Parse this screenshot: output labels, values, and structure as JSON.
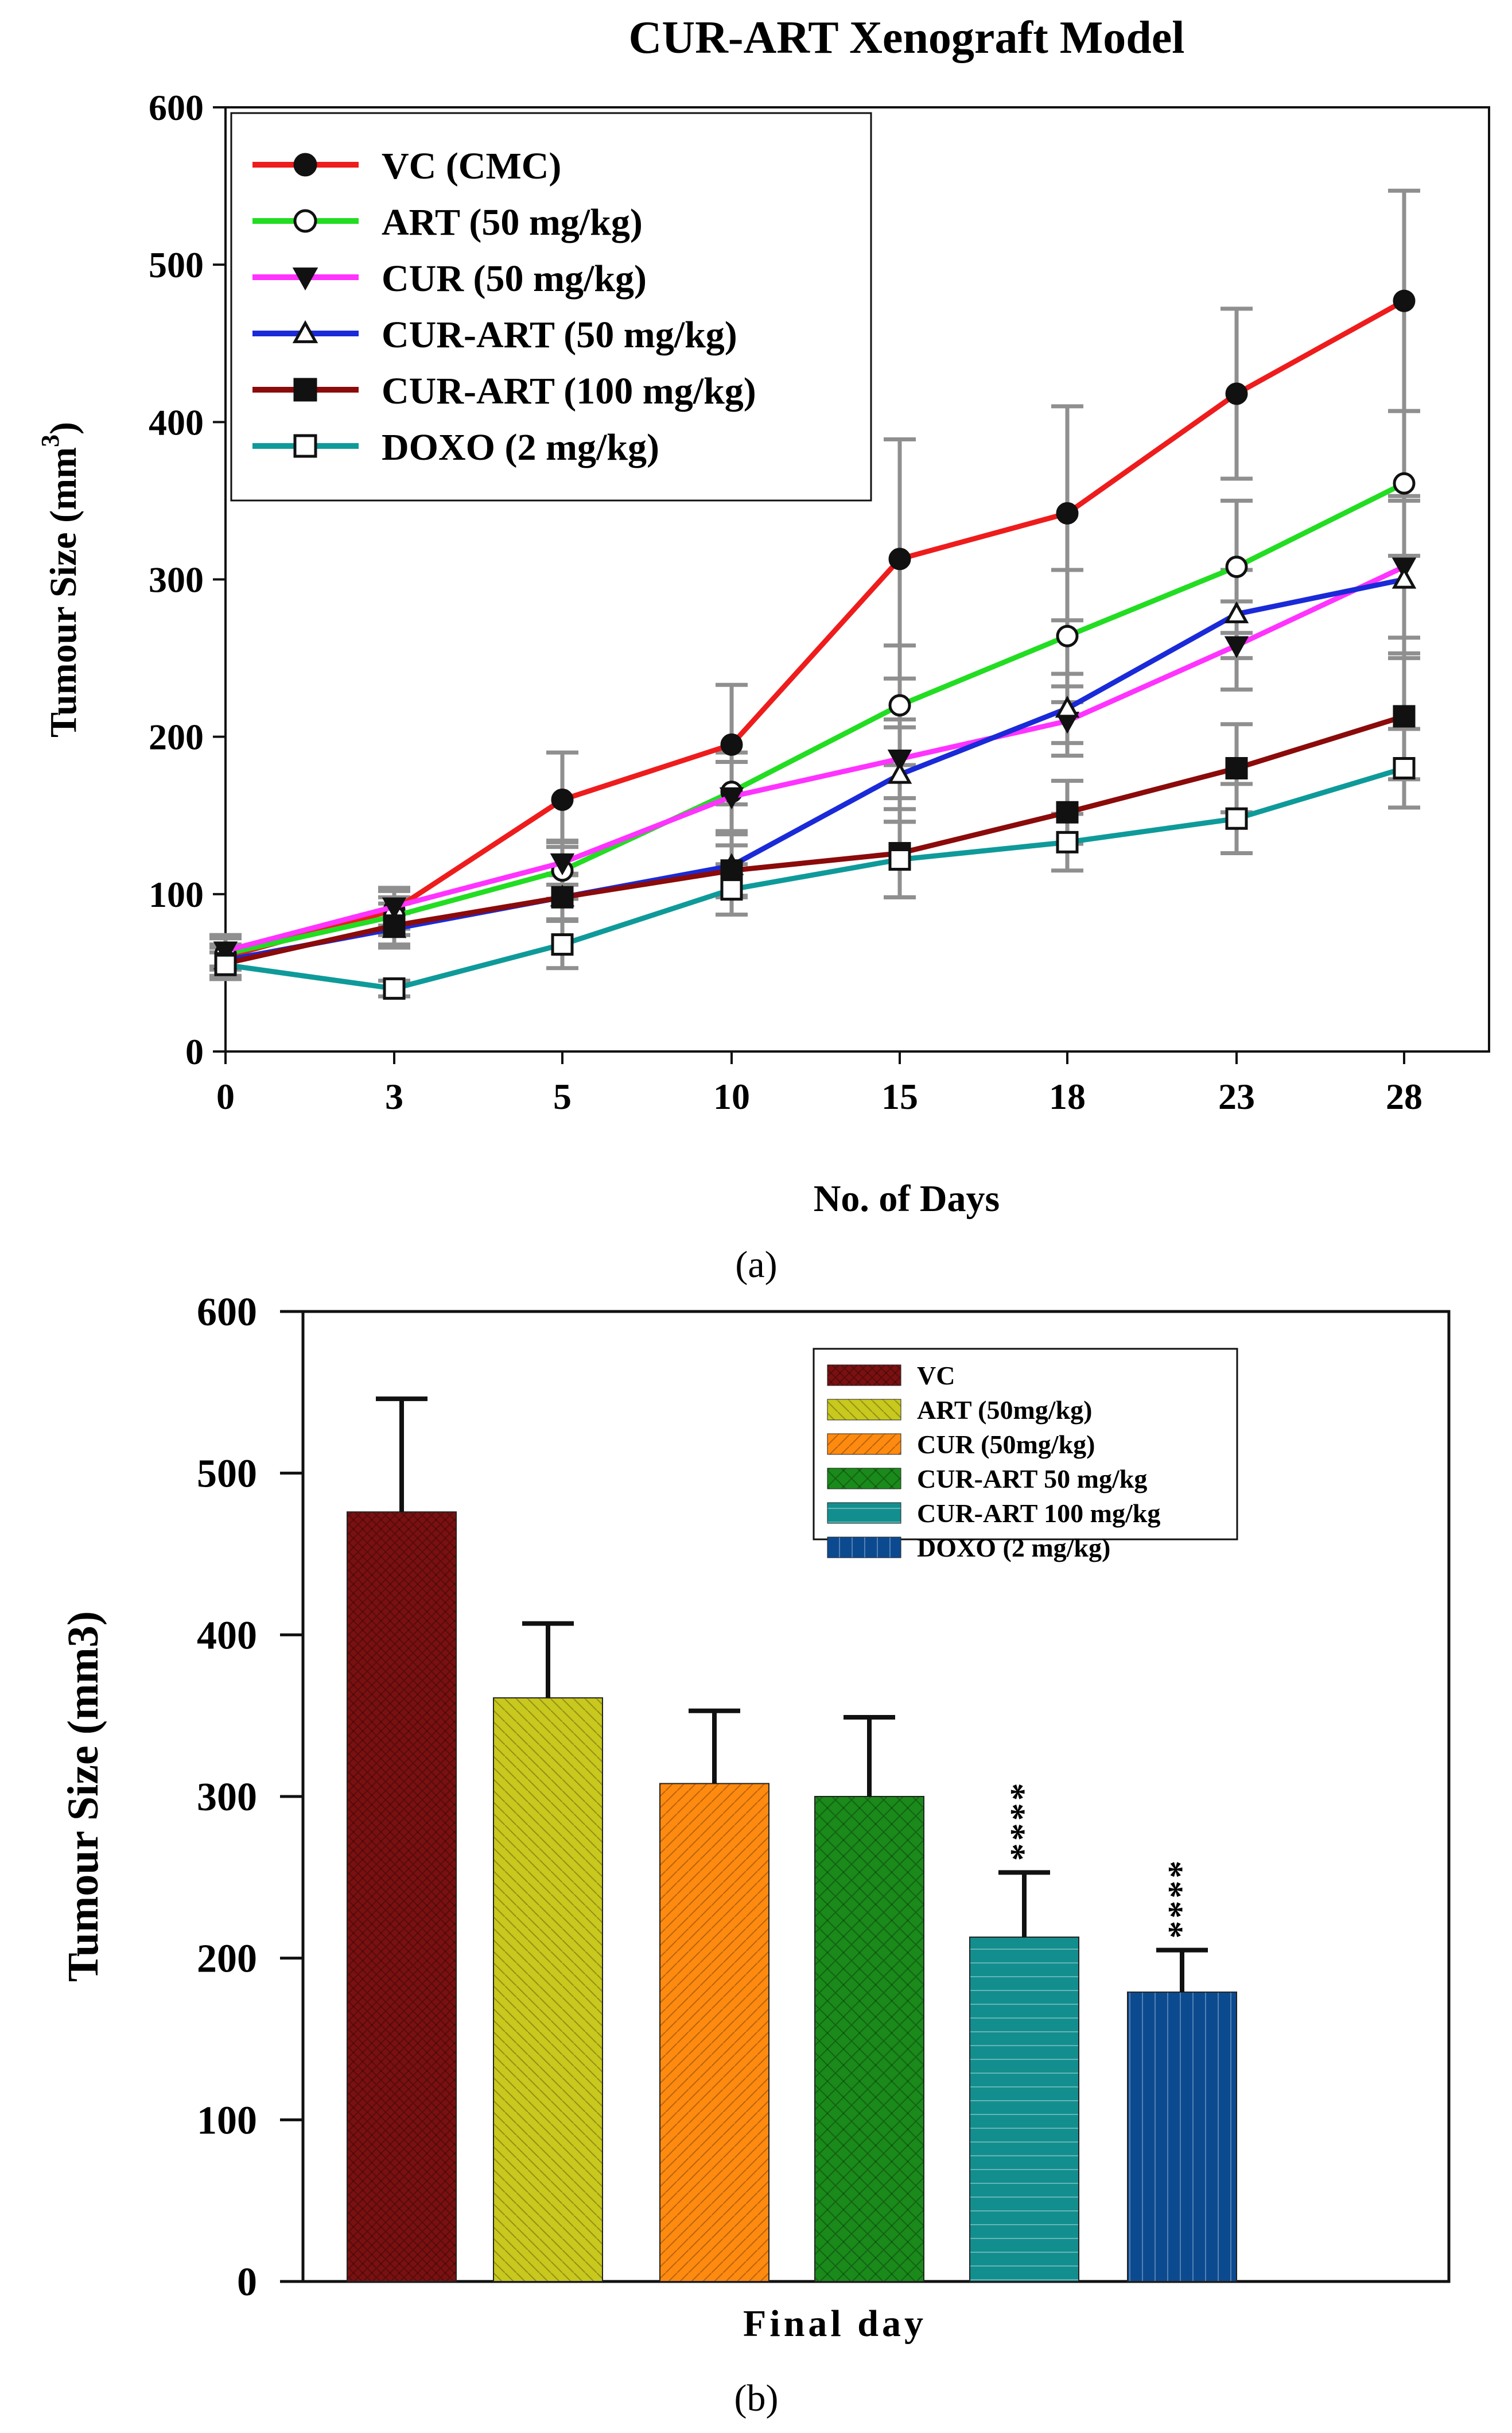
{
  "chart_data": [
    {
      "type": "line",
      "panel": "(a)",
      "title": "CUR-ART Xenograft Model",
      "xlabel": "No. of Days",
      "ylabel": "Tumour Size (mm",
      "ylabel_sup": "3",
      "ylabel_close": ")",
      "categories": [
        "0",
        "3",
        "5",
        "10",
        "15",
        "18",
        "23",
        "28"
      ],
      "ylim": [
        0,
        600
      ],
      "yticks": [
        0,
        100,
        200,
        300,
        400,
        500,
        600
      ],
      "series": [
        {
          "name": "VC (CMC)",
          "color": "#ee1c1c",
          "marker": "circle-filled",
          "values": [
            60,
            90,
            160,
            195,
            313,
            342,
            418,
            477
          ],
          "errors": [
            12,
            12,
            30,
            38,
            76,
            68,
            54,
            70
          ]
        },
        {
          "name": "ART (50 mg/kg)",
          "color": "#22dd22",
          "marker": "circle-open",
          "values": [
            62,
            86,
            115,
            165,
            220,
            264,
            308,
            361
          ],
          "errors": [
            10,
            12,
            18,
            25,
            38,
            42,
            42,
            46
          ]
        },
        {
          "name": "CUR (50 mg/kg)",
          "color": "#ff33ff",
          "marker": "triangle-down-filled",
          "values": [
            64,
            92,
            120,
            162,
            186,
            210,
            258,
            308
          ],
          "errors": [
            10,
            12,
            14,
            22,
            25,
            22,
            28,
            45
          ]
        },
        {
          "name": "CUR-ART (50 mg/kg)",
          "color": "#1a2ad8",
          "marker": "triangle-up-open",
          "values": [
            58,
            78,
            98,
            118,
            176,
            218,
            278,
            300
          ],
          "errors": [
            10,
            10,
            14,
            20,
            30,
            22,
            28,
            50
          ]
        },
        {
          "name": "CUR-ART (100 mg/kg)",
          "color": "#8b0a0a",
          "marker": "square-filled",
          "values": [
            56,
            80,
            98,
            115,
            126,
            152,
            180,
            213
          ],
          "errors": [
            10,
            14,
            15,
            16,
            28,
            20,
            28,
            40
          ]
        },
        {
          "name": "DOXO (2 mg/kg)",
          "color": "#0f9a9a",
          "marker": "square-open",
          "values": [
            55,
            40,
            68,
            103,
            122,
            133,
            148,
            180
          ],
          "errors": [
            8,
            5,
            15,
            16,
            24,
            18,
            22,
            25
          ]
        }
      ]
    },
    {
      "type": "bar",
      "panel": "(b)",
      "xlabel": "Final day",
      "ylabel": "Tumour Size (mm3)",
      "ylim": [
        0,
        600
      ],
      "yticks": [
        0,
        100,
        200,
        300,
        400,
        500,
        600
      ],
      "categories": [
        "VC",
        "ART (50mg/kg)",
        "CUR (50mg/kg)",
        "CUR-ART 50 mg/kg",
        "CUR-ART 100 mg/kg",
        "DOXO (2 mg/kg)"
      ],
      "values": [
        476,
        361,
        308,
        300,
        213,
        179
      ],
      "errors": [
        70,
        46,
        45,
        49,
        40,
        26
      ],
      "colors": [
        "#7a1010",
        "#c8c81e",
        "#ff8a10",
        "#1a8a1a",
        "#138e8e",
        "#0c4a90"
      ],
      "significance": [
        "",
        "",
        "",
        "",
        "****",
        "****"
      ]
    }
  ]
}
